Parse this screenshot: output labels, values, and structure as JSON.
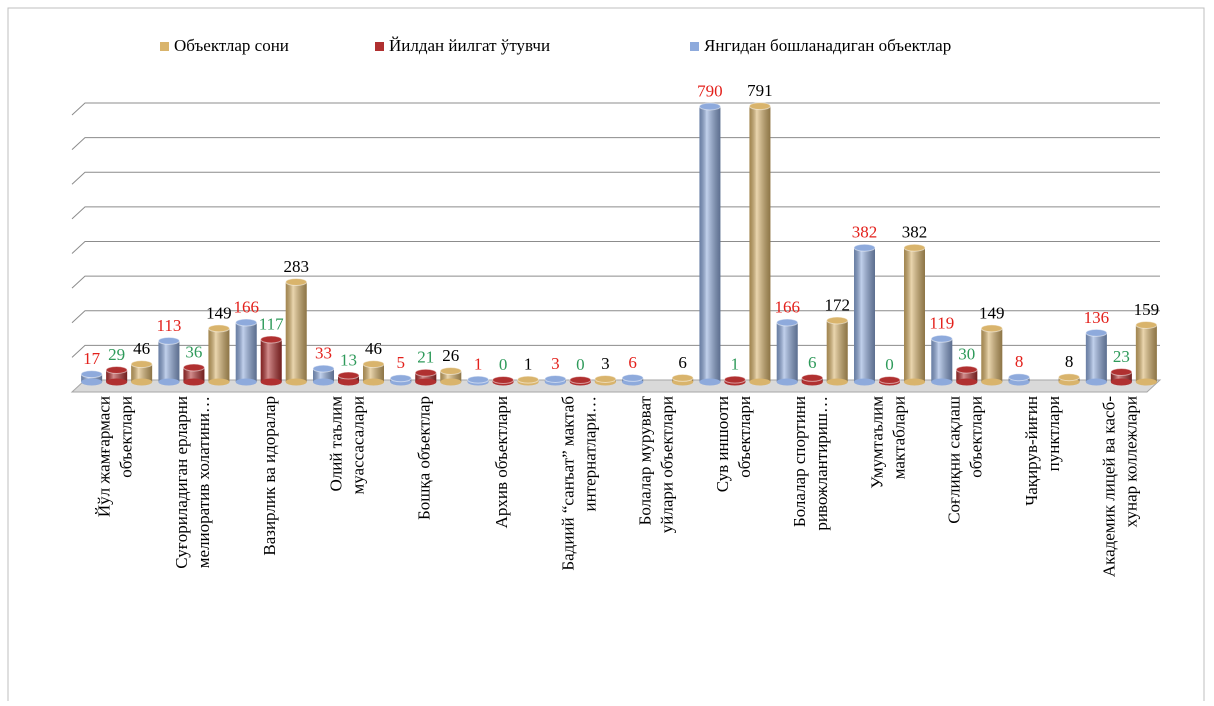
{
  "chart_data": {
    "type": "bar3d",
    "categories": [
      [
        "Йўл жамғармаси",
        "объектлари"
      ],
      [
        "Суғориладиган ерларни",
        "мелиоратив холатини…"
      ],
      [
        "Вазирлик ва идоралар"
      ],
      [
        "Олий таълим",
        "муассасалари"
      ],
      [
        "Бошқа объектлар"
      ],
      [
        "Архив объектлари"
      ],
      [
        "Бадиий “санъат” мактаб",
        "интернатлари…"
      ],
      [
        "Болалар мурувват",
        "уйлари объектлари"
      ],
      [
        "Сув иншооти",
        "объектлари"
      ],
      [
        "Болалар спортини",
        "ривожлантириш…"
      ],
      [
        "Умумтаълим",
        "мактаблари"
      ],
      [
        "Соғлиқни сақлаш",
        "объектлари"
      ],
      [
        "Чақирув-йиғин",
        "пунктлари"
      ],
      [
        "Академик лицей ва касб-",
        "хунар коллежлари"
      ]
    ],
    "series": [
      {
        "name": "Объектлар сони",
        "color": "#d9b46c",
        "label_color": "#000000",
        "values": [
          46,
          149,
          283,
          46,
          26,
          1,
          3,
          6,
          791,
          172,
          382,
          149,
          8,
          159
        ]
      },
      {
        "name": "Йилдан йилгат ўтувчи",
        "color": "#b03030",
        "label_color": "#2e9a5a",
        "values": [
          29,
          36,
          117,
          13,
          21,
          0,
          0,
          null,
          1,
          6,
          0,
          30,
          null,
          23
        ]
      },
      {
        "name": "Янгидан бошланадиган объектлар",
        "color": "#8eaadc",
        "label_color": "#e3201b",
        "values": [
          17,
          113,
          166,
          33,
          5,
          1,
          3,
          6,
          790,
          166,
          382,
          119,
          8,
          136
        ]
      }
    ],
    "ylim": [
      0,
      800
    ],
    "yticks": [
      0,
      100,
      200,
      300,
      400,
      500,
      600,
      700,
      800
    ],
    "grid": true,
    "legend": "top"
  }
}
